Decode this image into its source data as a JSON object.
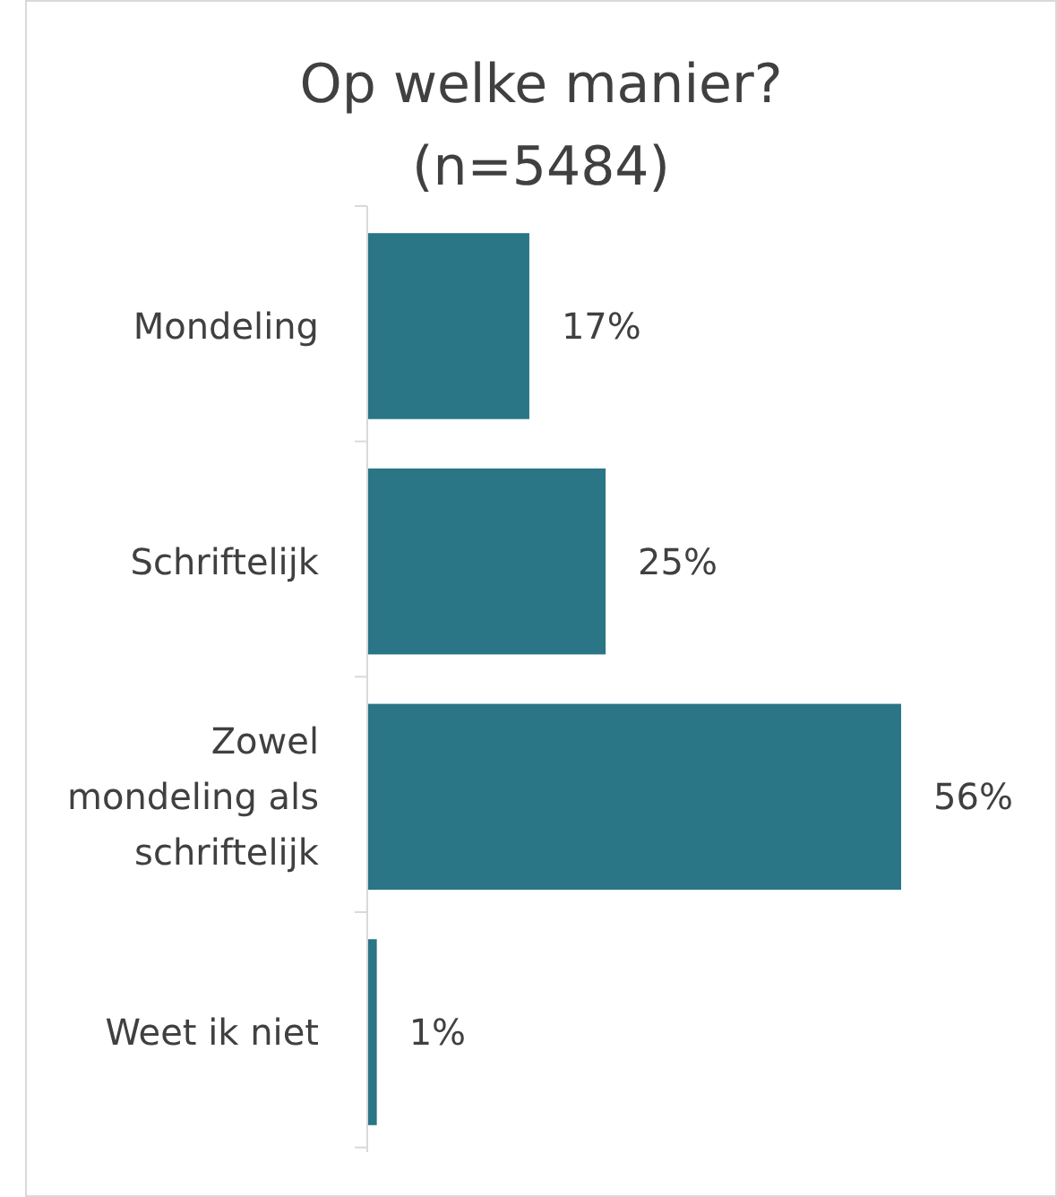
{
  "chart_data": {
    "type": "bar",
    "orientation": "horizontal",
    "title": "Op welke manier?",
    "subtitle": "(n=5484)",
    "categories": [
      "Mondeling",
      "Schriftelijk",
      "Zowel mondeling als schriftelijk",
      "Weet ik niet"
    ],
    "values": [
      17,
      25,
      56,
      1
    ],
    "value_labels": [
      "17%",
      "25%",
      "56%",
      "1%"
    ],
    "color": "#2a7586"
  }
}
